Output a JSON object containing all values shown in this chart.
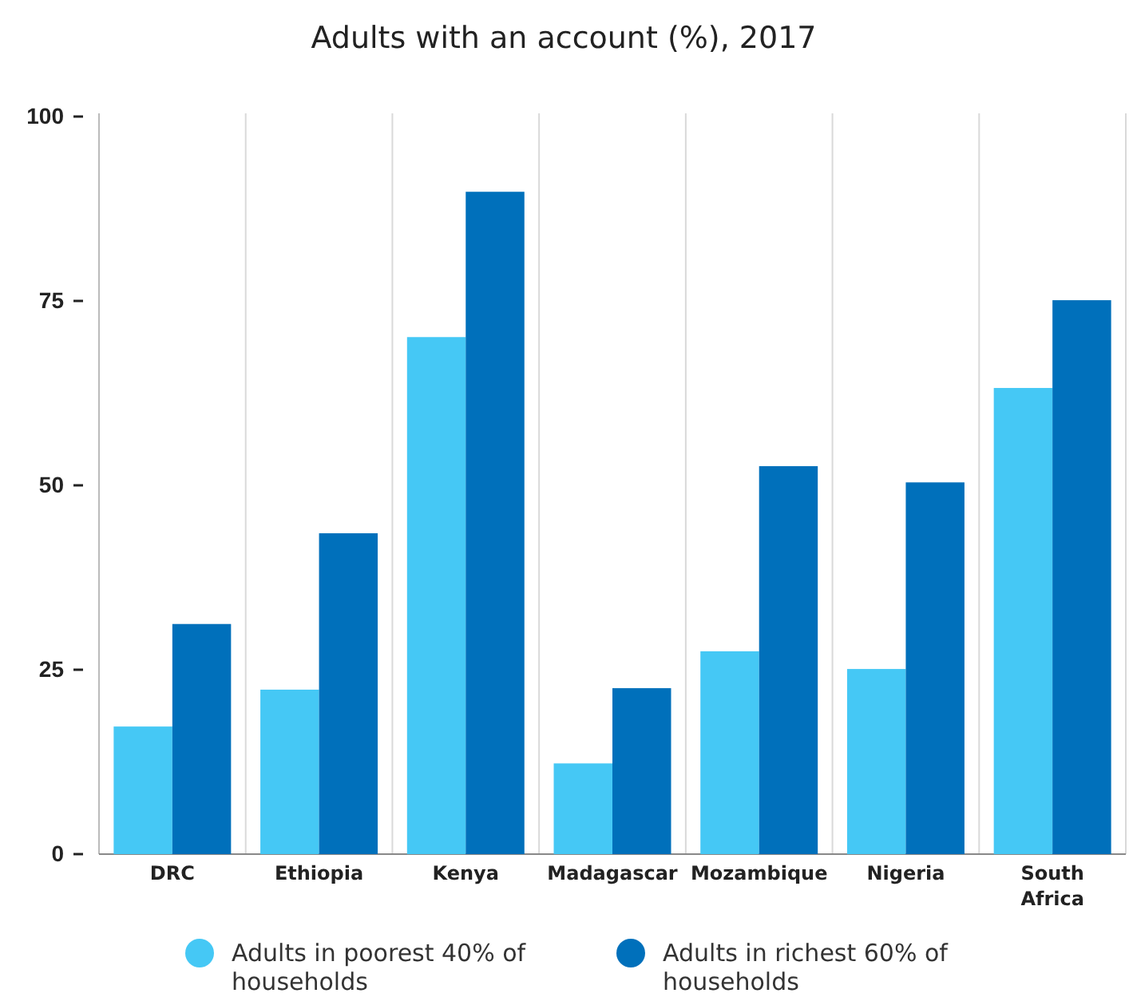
{
  "chart_data": {
    "type": "bar",
    "title": "Adults with an account (%), 2017",
    "categories": [
      "DRC",
      "Ethiopia",
      "Kenya",
      "Madagascar",
      "Mozambique",
      "Nigeria",
      "South Africa"
    ],
    "series": [
      {
        "name": "Adults in poorest 40% of households",
        "color": "#45c8f5",
        "values": [
          17.3,
          22.3,
          70.1,
          12.3,
          27.5,
          25.1,
          63.2
        ]
      },
      {
        "name": "Adults in richest 60% of households",
        "color": "#0070bb",
        "values": [
          31.2,
          43.5,
          89.8,
          22.5,
          52.6,
          50.4,
          75.1
        ]
      }
    ],
    "ylim": [
      0,
      100
    ],
    "yticks": [
      0,
      25,
      50,
      75,
      100
    ],
    "grid": "x",
    "legend": "bottom"
  }
}
